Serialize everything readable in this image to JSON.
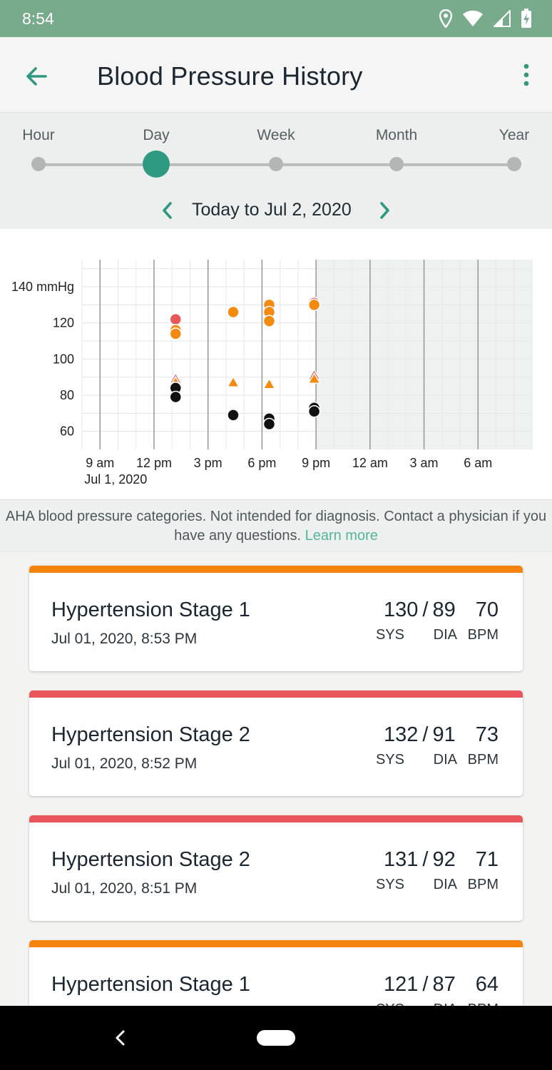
{
  "status_bar": {
    "time": "8:54",
    "icons": [
      "location-icon",
      "wifi-icon",
      "signal-icon",
      "battery-charging-icon"
    ]
  },
  "app_bar": {
    "title": "Blood Pressure History",
    "back_icon": "arrow-back-icon",
    "menu_icon": "more-vert-icon"
  },
  "range": {
    "options": [
      "Hour",
      "Day",
      "Week",
      "Month",
      "Year"
    ],
    "selected": "Day",
    "date_label": "Today to Jul 2, 2020"
  },
  "chart_data": {
    "type": "scatter",
    "x_ticks": [
      "9 am",
      "12 pm",
      "3 pm",
      "6 pm",
      "9 pm",
      "12 am",
      "3 am",
      "6 am"
    ],
    "x_subtitle": "Jul 1, 2020",
    "y_ticks": [
      "140 mmHg",
      "120",
      "100",
      "80",
      "60"
    ],
    "y_values": [
      140,
      120,
      100,
      80,
      60
    ],
    "ylim": [
      50,
      155
    ],
    "xlim_hours": [
      8,
      33
    ],
    "future_shaded_from_hour": 21,
    "colors": {
      "red": "#e8585b",
      "orange": "#f58a10",
      "black": "#111111",
      "future_shade": "#edf1f0"
    },
    "series": [
      {
        "kind": "systolic",
        "marker": "circle",
        "points": [
          {
            "t": 13.2,
            "v": 122,
            "c": "red"
          },
          {
            "t": 13.2,
            "v": 116,
            "c": "orange"
          },
          {
            "t": 13.2,
            "v": 114,
            "c": "orange"
          },
          {
            "t": 16.4,
            "v": 126,
            "c": "orange"
          },
          {
            "t": 18.4,
            "v": 130,
            "c": "orange"
          },
          {
            "t": 18.4,
            "v": 126,
            "c": "orange"
          },
          {
            "t": 18.4,
            "v": 121,
            "c": "orange"
          },
          {
            "t": 20.9,
            "v": 131,
            "c": "red"
          },
          {
            "t": 20.9,
            "v": 130,
            "c": "orange"
          }
        ]
      },
      {
        "kind": "diastolic",
        "marker": "triangle",
        "points": [
          {
            "t": 13.2,
            "v": 89,
            "c": "red"
          },
          {
            "t": 13.2,
            "v": 87,
            "c": "orange"
          },
          {
            "t": 16.4,
            "v": 87,
            "c": "orange"
          },
          {
            "t": 18.4,
            "v": 86,
            "c": "orange"
          },
          {
            "t": 20.9,
            "v": 91,
            "c": "red"
          },
          {
            "t": 20.9,
            "v": 89,
            "c": "orange"
          }
        ]
      },
      {
        "kind": "pulse",
        "marker": "circle",
        "points": [
          {
            "t": 13.2,
            "v": 84,
            "c": "black"
          },
          {
            "t": 13.2,
            "v": 79,
            "c": "black"
          },
          {
            "t": 16.4,
            "v": 69,
            "c": "black"
          },
          {
            "t": 18.4,
            "v": 67,
            "c": "black"
          },
          {
            "t": 18.4,
            "v": 64,
            "c": "black"
          },
          {
            "t": 20.9,
            "v": 73,
            "c": "black"
          },
          {
            "t": 20.9,
            "v": 71,
            "c": "black"
          }
        ]
      }
    ]
  },
  "disclaimer": {
    "text": "AHA blood pressure categories. Not intended for diagnosis. Contact a physician if you have any questions.",
    "link": "Learn more"
  },
  "units": {
    "sys": "SYS",
    "dia": "DIA",
    "bpm": "BPM"
  },
  "readings": [
    {
      "category": "Hypertension Stage 1",
      "date": "Jul 01, 2020, 8:53 PM",
      "sys": "130",
      "dia": "89",
      "bpm": "70",
      "color": "#f5840c"
    },
    {
      "category": "Hypertension Stage 2",
      "date": "Jul 01, 2020, 8:52 PM",
      "sys": "132",
      "dia": "91",
      "bpm": "73",
      "color": "#e8555a"
    },
    {
      "category": "Hypertension Stage 2",
      "date": "Jul 01, 2020, 8:51 PM",
      "sys": "131",
      "dia": "92",
      "bpm": "71",
      "color": "#e8555a"
    },
    {
      "category": "Hypertension Stage 1",
      "date": "",
      "sys": "121",
      "dia": "87",
      "bpm": "64",
      "color": "#f5840c"
    }
  ]
}
